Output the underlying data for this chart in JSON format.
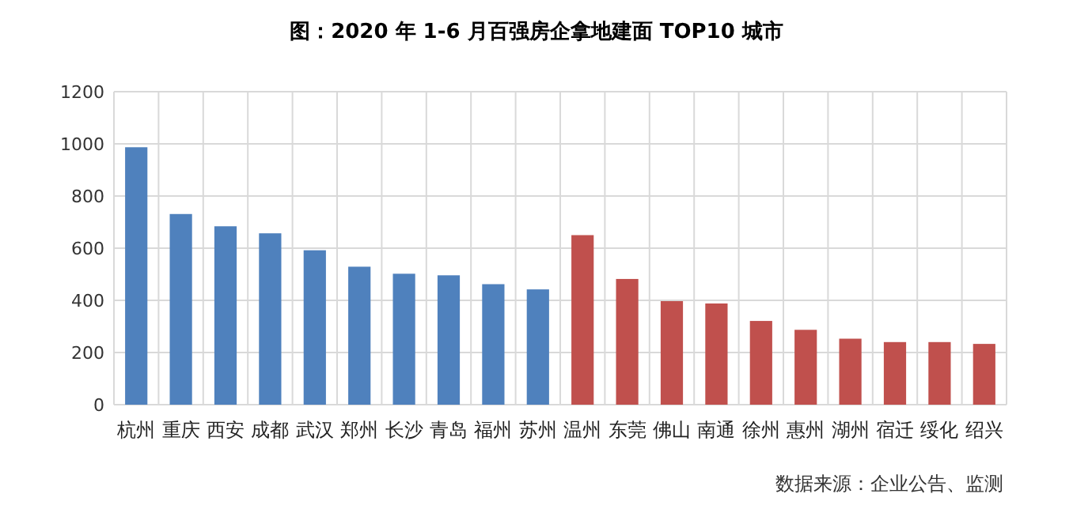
{
  "chart_data": {
    "type": "bar",
    "title": "图：2020 年 1-6 月百强房企拿地建面 TOP10 城市",
    "categories": [
      "杭州",
      "重庆",
      "西安",
      "成都",
      "武汉",
      "郑州",
      "长沙",
      "青岛",
      "福州",
      "苏州",
      "温州",
      "东莞",
      "佛山",
      "南通",
      "徐州",
      "惠州",
      "湖州",
      "宿迁",
      "绥化",
      "绍兴"
    ],
    "values": [
      987,
      731,
      684,
      657,
      592,
      529,
      502,
      496,
      462,
      442,
      650,
      482,
      397,
      388,
      321,
      287,
      253,
      240,
      240,
      233
    ],
    "colors": [
      "#4f81bd",
      "#4f81bd",
      "#4f81bd",
      "#4f81bd",
      "#4f81bd",
      "#4f81bd",
      "#4f81bd",
      "#4f81bd",
      "#4f81bd",
      "#4f81bd",
      "#c0504d",
      "#c0504d",
      "#c0504d",
      "#c0504d",
      "#c0504d",
      "#c0504d",
      "#c0504d",
      "#c0504d",
      "#c0504d",
      "#c0504d"
    ],
    "ylim": [
      0,
      1200
    ],
    "yticks": [
      0,
      200,
      400,
      600,
      800,
      1000,
      1200
    ],
    "grid": true,
    "annotations": [
      "数据来源：企业公告、监测"
    ]
  }
}
